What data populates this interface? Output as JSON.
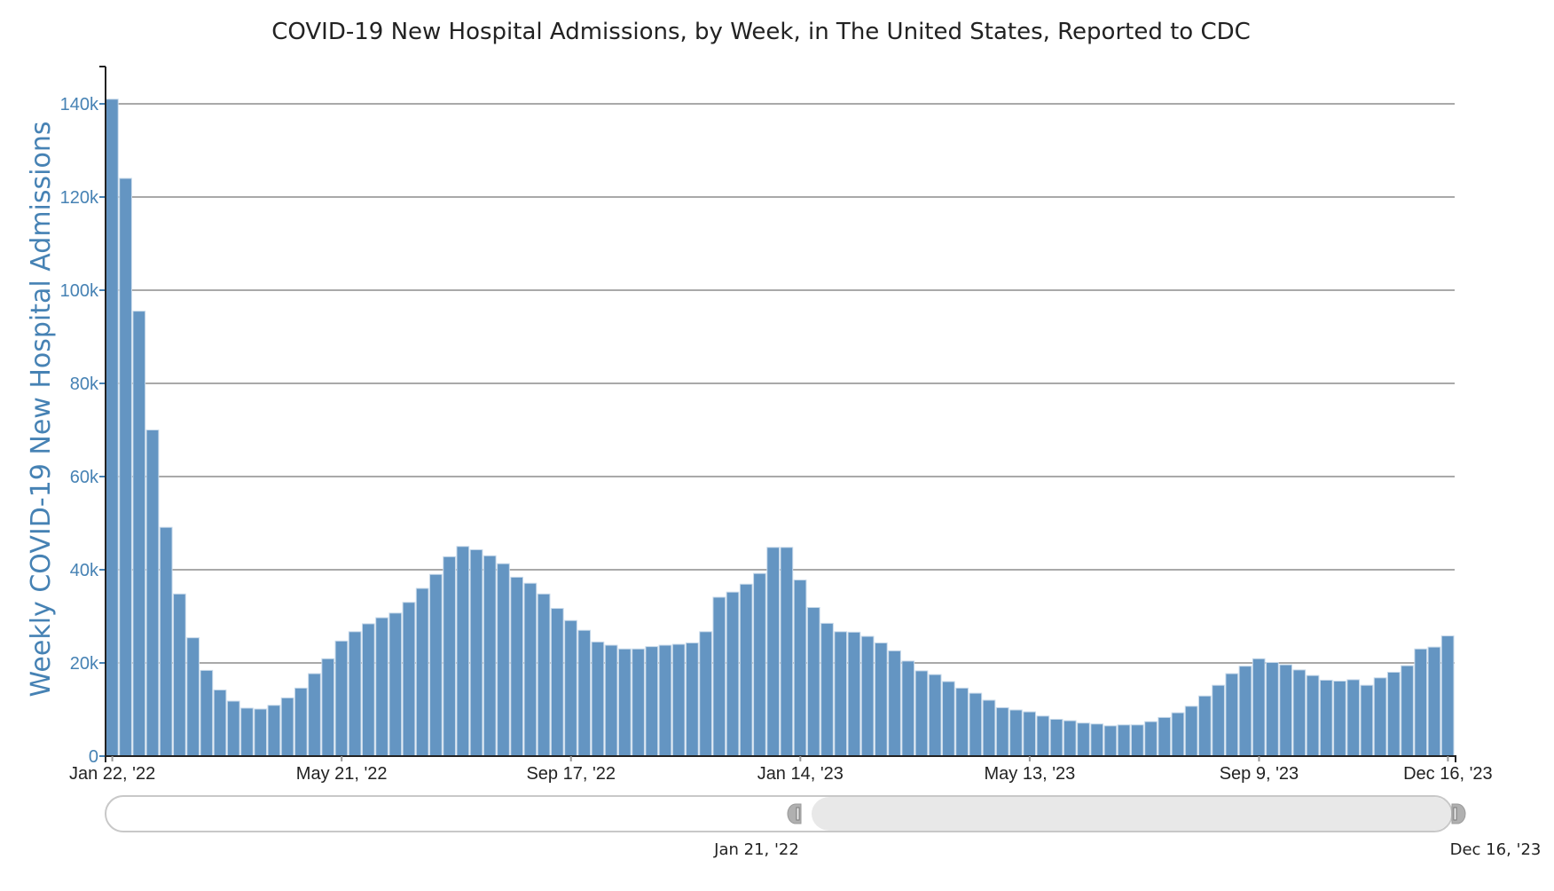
{
  "chart_data": {
    "type": "bar",
    "title": "COVID-19 New Hospital Admissions, by Week, in The United States, Reported to CDC",
    "xlabel": "",
    "ylabel": "Weekly COVID-19 New Hospital Admissions",
    "ylim": [
      0,
      147000
    ],
    "grid": true,
    "legend": "none",
    "bar_color": "#6495c2",
    "ytick_color": "#4682b4",
    "yticks": [
      {
        "value": 0,
        "label": "0"
      },
      {
        "value": 20000,
        "label": "20k"
      },
      {
        "value": 40000,
        "label": "40k"
      },
      {
        "value": 60000,
        "label": "60k"
      },
      {
        "value": 80000,
        "label": "80k"
      },
      {
        "value": 100000,
        "label": "100k"
      },
      {
        "value": 120000,
        "label": "120k"
      },
      {
        "value": 140000,
        "label": "140k"
      }
    ],
    "xticks": [
      {
        "index": 0,
        "label": "Jan 22, '22"
      },
      {
        "index": 17,
        "label": "May 21, '22"
      },
      {
        "index": 34,
        "label": "Sep 17, '22"
      },
      {
        "index": 51,
        "label": "Jan 14, '23"
      },
      {
        "index": 68,
        "label": "May 13, '23"
      },
      {
        "index": 85,
        "label": "Sep 9, '23"
      },
      {
        "index": 99,
        "label": "Dec 16, '23"
      }
    ],
    "x_start": "Jan 22, '22",
    "x_end": "Dec 16, '23",
    "interval": "weekly",
    "values": [
      141000,
      124000,
      95500,
      70000,
      49100,
      34800,
      25400,
      18400,
      14200,
      11800,
      10300,
      10100,
      10900,
      12500,
      14600,
      17700,
      20900,
      24700,
      26700,
      28400,
      29700,
      30700,
      33000,
      36000,
      39000,
      42800,
      45000,
      44300,
      43000,
      41300,
      38400,
      37100,
      34800,
      31700,
      29100,
      27000,
      24500,
      23800,
      23000,
      23000,
      23500,
      23800,
      24000,
      24300,
      26700,
      34100,
      35200,
      36900,
      39200,
      44800,
      44800,
      37800,
      31900,
      28500,
      26700,
      26600,
      25700,
      24300,
      22600,
      20400,
      18300,
      17500,
      16000,
      14600,
      13500,
      12000,
      10400,
      9900,
      9500,
      8600,
      7900,
      7600,
      7100,
      6900,
      6500,
      6700,
      6700,
      7400,
      8300,
      9300,
      10700,
      12900,
      15200,
      17700,
      19300,
      20900,
      20100,
      19600,
      18500,
      17300,
      16300,
      16100,
      16400,
      15200,
      16800,
      18000,
      19400,
      23000,
      23400,
      25800
    ]
  },
  "range_slider": {
    "start_label": "Jan 21, '22",
    "end_label": "Dec 16, '23",
    "selected_start_fraction": 0.5,
    "selected_end_fraction": 1.0
  }
}
